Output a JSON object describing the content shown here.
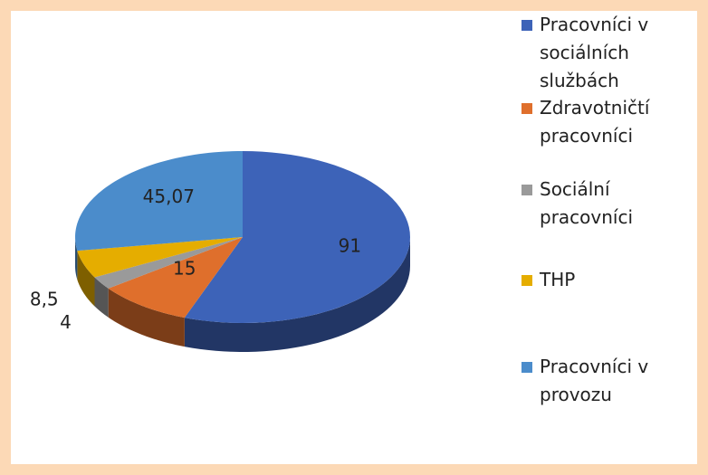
{
  "chart_data": {
    "type": "pie",
    "categories": [
      "Pracovníci v sociálních službách",
      "Zdravotničtí pracovníci",
      "Sociální pracovníci",
      "THP",
      "Pracovníci v provozu"
    ],
    "values": [
      91,
      15,
      4,
      8.5,
      45.07
    ],
    "value_labels": [
      "91",
      "15",
      "4",
      "8,5",
      "45,07"
    ],
    "colors": [
      "#3d63b8",
      "#df6f2c",
      "#9a9a9a",
      "#e5ad00",
      "#4b8ccb"
    ]
  }
}
